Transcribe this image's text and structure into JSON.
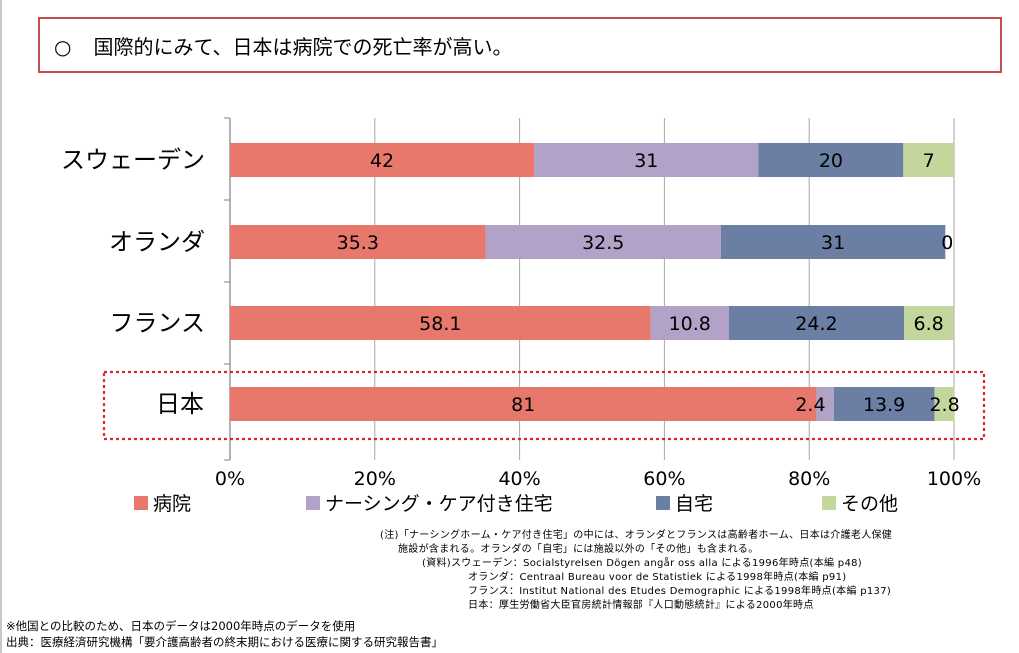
{
  "headline": {
    "marker": "○",
    "text": "国際的にみて、日本は病院での死亡率が高い。"
  },
  "chart_data": {
    "type": "bar",
    "orientation": "horizontal",
    "stacked": true,
    "percent_stacked": true,
    "title": "",
    "categories": [
      "スウェーデン",
      "オランダ",
      "フランス",
      "日本"
    ],
    "highlighted_category": "日本",
    "series": [
      {
        "name": "病院",
        "color": "#e8786b",
        "values": [
          42,
          35.3,
          58.1,
          81
        ],
        "labels": [
          "42",
          "35.3",
          "58.1",
          "81"
        ]
      },
      {
        "name": "ナーシング・ケア付き住宅",
        "color": "#b3a2c7",
        "values": [
          31,
          32.5,
          10.8,
          2.4
        ],
        "labels": [
          "31",
          "32.5",
          "10.8",
          "2.4"
        ]
      },
      {
        "name": "自宅",
        "color": "#6b7fa4",
        "values": [
          20,
          31,
          24.2,
          13.9
        ],
        "labels": [
          "20",
          "31",
          "24.2",
          "13.9"
        ]
      },
      {
        "name": "その他",
        "color": "#c3d69b",
        "values": [
          7,
          0,
          6.8,
          2.8
        ],
        "labels": [
          "7",
          "0",
          "6.8",
          "2.8"
        ]
      }
    ],
    "x_ticks": [
      "0%",
      "20%",
      "40%",
      "60%",
      "80%",
      "100%"
    ],
    "xlim": [
      0,
      100
    ],
    "grid": true,
    "legend": "bottom"
  },
  "notes": [
    "(注)「ナーシングホーム・ケア付き住宅」の中には、オランダとフランスは高齢者ホーム、日本は介護老人保健",
    "施設が含まれる。オランダの「自宅」には施設以外の「その他」も含まれる。",
    "(資料)スウェーデン：Socialstyrelsen Dögen angår oss alla による1996年時点(本編 p48)",
    "オランダ：Centraal Bureau voor de Statistiek による1998年時点(本編 p91)",
    "フランス：Institut National des Etudes Demographic による1998年時点(本編 p137)",
    "日本：厚生労働省大臣官房統計情報部『人口動態統計』による2000年時点"
  ],
  "footer": {
    "note": "※他国との比較のため、日本のデータは2000年時点のデータを使用",
    "source": "出典：医療経済研究機構「要介護高齢者の終末期における医療に関する研究報告書」"
  }
}
